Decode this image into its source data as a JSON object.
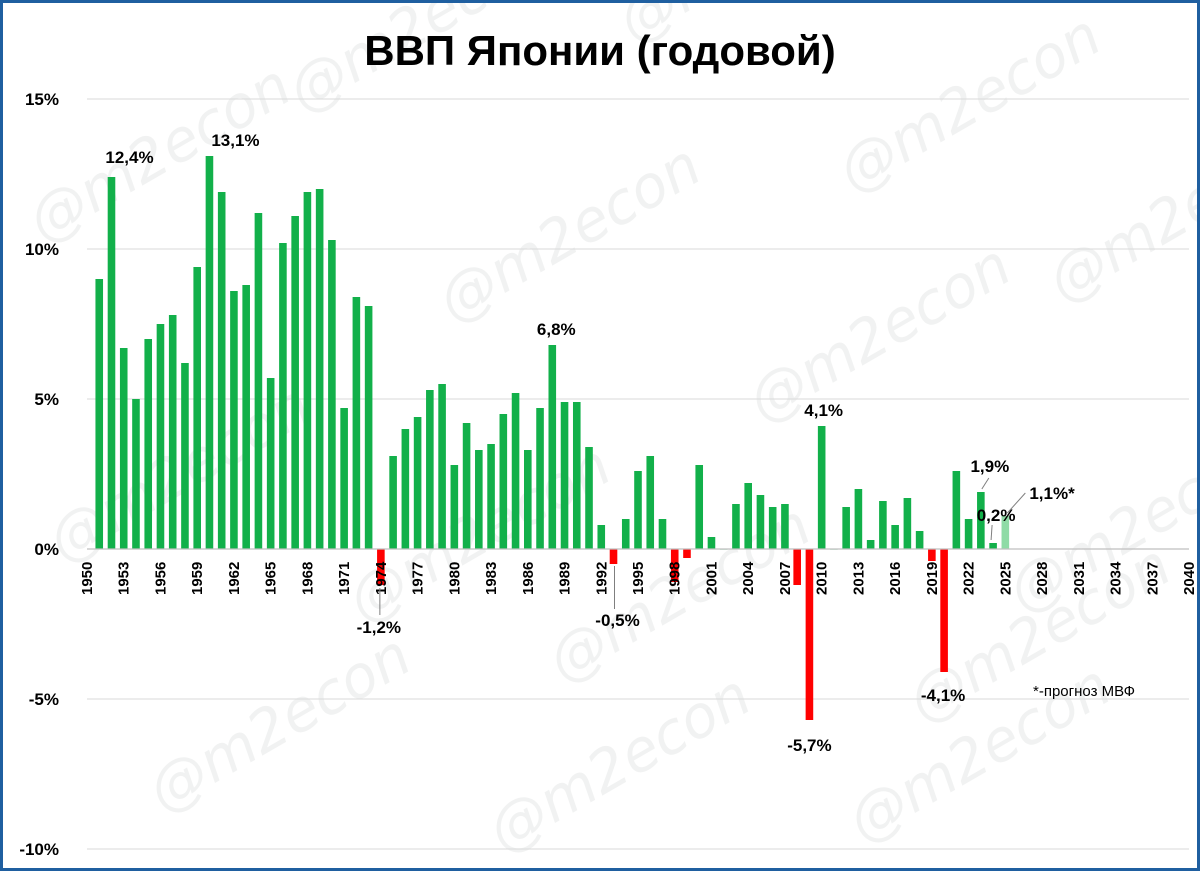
{
  "watermark": "@m2econ",
  "note": "*-прогноз МВФ",
  "colors": {
    "positive": "#12b04a",
    "negative": "#ff0000",
    "forecast": "#8fdba6",
    "grid": "#d9d9d9",
    "frame": "#1f5fa0"
  },
  "chart_data": {
    "type": "bar",
    "title": "ВВП Японии (годовой)",
    "xlabel": "",
    "ylabel": "",
    "ylim": [
      -10,
      15
    ],
    "xlim": [
      1950,
      2040
    ],
    "grid": true,
    "y_ticks": [
      15,
      10,
      5,
      0,
      -5,
      -10
    ],
    "y_tick_labels": [
      "15%",
      "10%",
      "5%",
      "0%",
      "-5%",
      "-10%"
    ],
    "x_ticks": [
      1950,
      1953,
      1956,
      1959,
      1962,
      1965,
      1968,
      1971,
      1974,
      1977,
      1980,
      1983,
      1986,
      1989,
      1992,
      1995,
      1998,
      2001,
      2004,
      2007,
      2010,
      2013,
      2016,
      2019,
      2022,
      2025,
      2028,
      2031,
      2034,
      2037,
      2040
    ],
    "years": [
      1951,
      1952,
      1953,
      1954,
      1955,
      1956,
      1957,
      1958,
      1959,
      1960,
      1961,
      1962,
      1963,
      1964,
      1965,
      1966,
      1967,
      1968,
      1969,
      1970,
      1971,
      1972,
      1973,
      1974,
      1975,
      1976,
      1977,
      1978,
      1979,
      1980,
      1981,
      1982,
      1983,
      1984,
      1985,
      1986,
      1987,
      1988,
      1989,
      1990,
      1991,
      1992,
      1993,
      1994,
      1995,
      1996,
      1997,
      1998,
      1999,
      2000,
      2001,
      2002,
      2003,
      2004,
      2005,
      2006,
      2007,
      2008,
      2009,
      2010,
      2011,
      2012,
      2013,
      2014,
      2015,
      2016,
      2017,
      2018,
      2019,
      2020,
      2021,
      2022,
      2023,
      2024,
      2025
    ],
    "values": [
      9.0,
      12.4,
      6.7,
      5.0,
      7.0,
      7.5,
      7.8,
      6.2,
      9.4,
      13.1,
      11.9,
      8.6,
      8.8,
      11.2,
      5.7,
      10.2,
      11.1,
      11.9,
      12.0,
      10.3,
      4.7,
      8.4,
      8.1,
      -1.2,
      3.1,
      4.0,
      4.4,
      5.3,
      5.5,
      2.8,
      4.2,
      3.3,
      3.5,
      4.5,
      5.2,
      3.3,
      4.7,
      6.8,
      4.9,
      4.9,
      3.4,
      0.8,
      -0.5,
      1.0,
      2.6,
      3.1,
      1.0,
      -1.1,
      -0.3,
      2.8,
      0.4,
      0.0,
      1.5,
      2.2,
      1.8,
      1.4,
      1.5,
      -1.2,
      -5.7,
      4.1,
      0.0,
      1.4,
      2.0,
      0.3,
      1.6,
      0.8,
      1.7,
      0.6,
      -0.4,
      -4.1,
      2.6,
      1.0,
      1.9,
      0.2,
      1.1
    ],
    "forecast_years": [
      2025
    ],
    "annotations": [
      {
        "year": 1952,
        "text": "12,4%"
      },
      {
        "year": 1960,
        "text": "13,1%"
      },
      {
        "year": 1974,
        "text": "-1,2%"
      },
      {
        "year": 1988,
        "text": "6,8%"
      },
      {
        "year": 1993,
        "text": "-0,5%"
      },
      {
        "year": 2009,
        "text": "-5,7%"
      },
      {
        "year": 2010,
        "text": "4,1%"
      },
      {
        "year": 2020,
        "text": "-4,1%"
      },
      {
        "year": 2023,
        "text": "1,9%"
      },
      {
        "year": 2024,
        "text": "0,2%"
      },
      {
        "year": 2025,
        "text": "1,1%*"
      }
    ]
  }
}
